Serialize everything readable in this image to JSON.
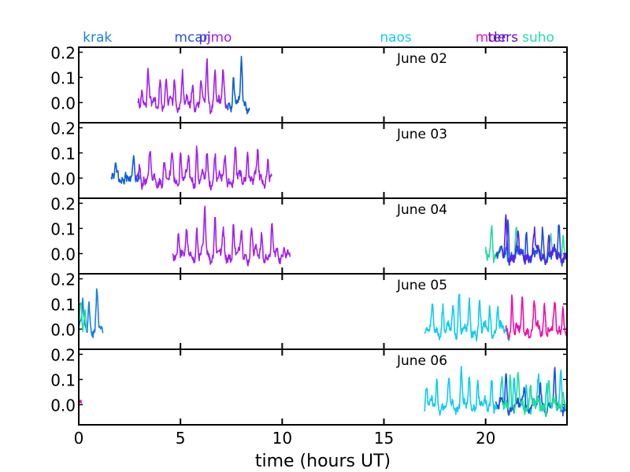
{
  "chart_data": {
    "type": "line",
    "xlabel": "time (hours UT)",
    "xlim": [
      0,
      24
    ],
    "xticks": [
      "0",
      "5",
      "10",
      "15",
      "20"
    ],
    "ylim": [
      -0.08,
      0.22
    ],
    "yticks": [
      "0.0",
      "0.1",
      "0.2"
    ],
    "station_labels": [
      {
        "name": "krak",
        "x": 0.2,
        "color": "#1a7ee8"
      },
      {
        "name": "mcar",
        "x": 4.7,
        "color": "#2b50e8"
      },
      {
        "name": "pi",
        "x": 5.9,
        "color": "#4a38e8"
      },
      {
        "name": "jmo",
        "x": 6.3,
        "color": "#a020f0"
      },
      {
        "name": "naos",
        "x": 14.8,
        "color": "#11ccee"
      },
      {
        "name": "mo",
        "x": 19.5,
        "color": "#ee11bb"
      },
      {
        "name": "ter",
        "x": 20.1,
        "color": "#4422dd"
      },
      {
        "name": "lers",
        "x": 20.4,
        "color": "#6611cc"
      },
      {
        "name": "suho",
        "x": 21.8,
        "color": "#22ddaa"
      }
    ],
    "panels": [
      {
        "label": "June 02",
        "series": [
          {
            "color": "#0b60d8",
            "x_range": [
              7.2,
              8.4
            ],
            "peaks": [
              [
                7.6,
                0.1
              ],
              [
                8.0,
                0.17
              ]
            ]
          },
          {
            "color": "#a020f0",
            "x_range": [
              2.9,
              7.3
            ],
            "peaks": [
              [
                3.1,
                0.09
              ],
              [
                3.4,
                0.13
              ],
              [
                4.0,
                0.11
              ],
              [
                4.3,
                0.07
              ],
              [
                4.7,
                0.11
              ],
              [
                5.1,
                0.12
              ],
              [
                5.6,
                0.08
              ],
              [
                6.0,
                0.09
              ],
              [
                6.3,
                0.16
              ],
              [
                6.7,
                0.15
              ],
              [
                7.1,
                0.12
              ]
            ]
          }
        ]
      },
      {
        "label": "June 03",
        "series": [
          {
            "color": "#0b60d8",
            "x_range": [
              1.6,
              3.0
            ],
            "peaks": [
              [
                1.8,
                0.06
              ],
              [
                2.3,
                0.05
              ],
              [
                2.7,
                0.06
              ]
            ]
          },
          {
            "color": "#a020f0",
            "x_range": [
              2.8,
              9.5
            ],
            "peaks": [
              [
                3.0,
                0.06
              ],
              [
                3.5,
                0.1
              ],
              [
                4.2,
                0.07
              ],
              [
                4.6,
                0.12
              ],
              [
                5.0,
                0.1
              ],
              [
                5.4,
                0.08
              ],
              [
                5.8,
                0.13
              ],
              [
                6.3,
                0.09
              ],
              [
                6.7,
                0.12
              ],
              [
                7.2,
                0.09
              ],
              [
                7.7,
                0.12
              ],
              [
                8.3,
                0.14
              ],
              [
                8.8,
                0.1
              ],
              [
                9.3,
                0.08
              ]
            ]
          }
        ]
      },
      {
        "label": "June 04",
        "series": [
          {
            "color": "#a020f0",
            "x_range": [
              4.6,
              10.4
            ],
            "peaks": [
              [
                4.9,
                0.12
              ],
              [
                5.3,
                0.07
              ],
              [
                5.8,
                0.1
              ],
              [
                6.2,
                0.18
              ],
              [
                6.7,
                0.17
              ],
              [
                7.1,
                0.09
              ],
              [
                7.6,
                0.12
              ],
              [
                8.0,
                0.1
              ],
              [
                8.5,
                0.12
              ],
              [
                9.0,
                0.08
              ],
              [
                9.5,
                0.09
              ],
              [
                10.1,
                0.06
              ]
            ]
          },
          {
            "color": "#22dd99",
            "x_range": [
              20.0,
              24.0
            ],
            "peaks": [
              [
                20.3,
                0.13
              ],
              [
                21.5,
                0.09
              ],
              [
                23.2,
                0.08
              ],
              [
                23.8,
                0.1
              ]
            ]
          },
          {
            "color": "#1d4fe0",
            "x_range": [
              20.5,
              24.0
            ],
            "peaks": [
              [
                21.1,
                0.15
              ],
              [
                22.0,
                0.1
              ],
              [
                22.8,
                0.11
              ],
              [
                23.6,
                0.12
              ]
            ]
          },
          {
            "color": "#5522ee",
            "x_range": [
              20.8,
              24.0
            ],
            "peaks": [
              [
                21.0,
                0.16
              ],
              [
                21.6,
                0.08
              ],
              [
                22.4,
                0.09
              ],
              [
                23.1,
                0.07
              ]
            ]
          }
        ]
      },
      {
        "label": "June 05",
        "series": [
          {
            "color": "#1a7ee8",
            "x_range": [
              0.0,
              1.2
            ],
            "peaks": [
              [
                0.2,
                0.12
              ],
              [
                0.5,
                0.13
              ],
              [
                0.9,
                0.15
              ]
            ]
          },
          {
            "color": "#22dd99",
            "x_range": [
              0.0,
              0.4
            ],
            "peaks": [
              [
                0.1,
                0.09
              ],
              [
                0.3,
                0.06
              ]
            ]
          },
          {
            "color": "#11ccee",
            "x_range": [
              17.0,
              21.2
            ],
            "peaks": [
              [
                17.4,
                0.09
              ],
              [
                17.9,
                0.1
              ],
              [
                18.4,
                0.1
              ],
              [
                18.7,
                0.16
              ],
              [
                19.2,
                0.1
              ],
              [
                19.7,
                0.12
              ],
              [
                20.2,
                0.09
              ],
              [
                20.6,
                0.09
              ]
            ]
          },
          {
            "color": "#ee11aa",
            "x_range": [
              21.0,
              24.0
            ],
            "peaks": [
              [
                21.3,
                0.14
              ],
              [
                21.8,
                0.11
              ],
              [
                22.4,
                0.11
              ],
              [
                22.9,
                0.12
              ],
              [
                23.4,
                0.1
              ],
              [
                23.8,
                0.12
              ]
            ]
          }
        ]
      },
      {
        "label": "June 06",
        "series": [
          {
            "color": "#ee11aa",
            "x_range": [
              0.0,
              0.15
            ],
            "peaks": []
          },
          {
            "color": "#11ccee",
            "x_range": [
              17.0,
              24.0
            ],
            "peaks": [
              [
                17.1,
                0.07
              ],
              [
                17.6,
                0.09
              ],
              [
                18.2,
                0.09
              ],
              [
                18.8,
                0.16
              ],
              [
                19.2,
                0.1
              ],
              [
                19.6,
                0.12
              ],
              [
                20.3,
                0.13
              ],
              [
                20.8,
                0.09
              ],
              [
                21.4,
                0.13
              ],
              [
                22.0,
                0.1
              ],
              [
                22.6,
                0.1
              ],
              [
                23.0,
                0.1
              ],
              [
                23.7,
                0.17
              ]
            ]
          },
          {
            "color": "#1d4fe0",
            "x_range": [
              20.5,
              24.0
            ],
            "peaks": [
              [
                21.0,
                0.12
              ],
              [
                21.9,
                0.1
              ],
              [
                22.7,
                0.09
              ],
              [
                23.4,
                0.13
              ]
            ]
          },
          {
            "color": "#22dd99",
            "x_range": [
              20.8,
              24.0
            ],
            "peaks": [
              [
                21.2,
                0.15
              ],
              [
                21.6,
                0.11
              ],
              [
                22.2,
                0.11
              ],
              [
                23.1,
                0.09
              ],
              [
                23.8,
                0.08
              ]
            ]
          }
        ]
      }
    ]
  }
}
